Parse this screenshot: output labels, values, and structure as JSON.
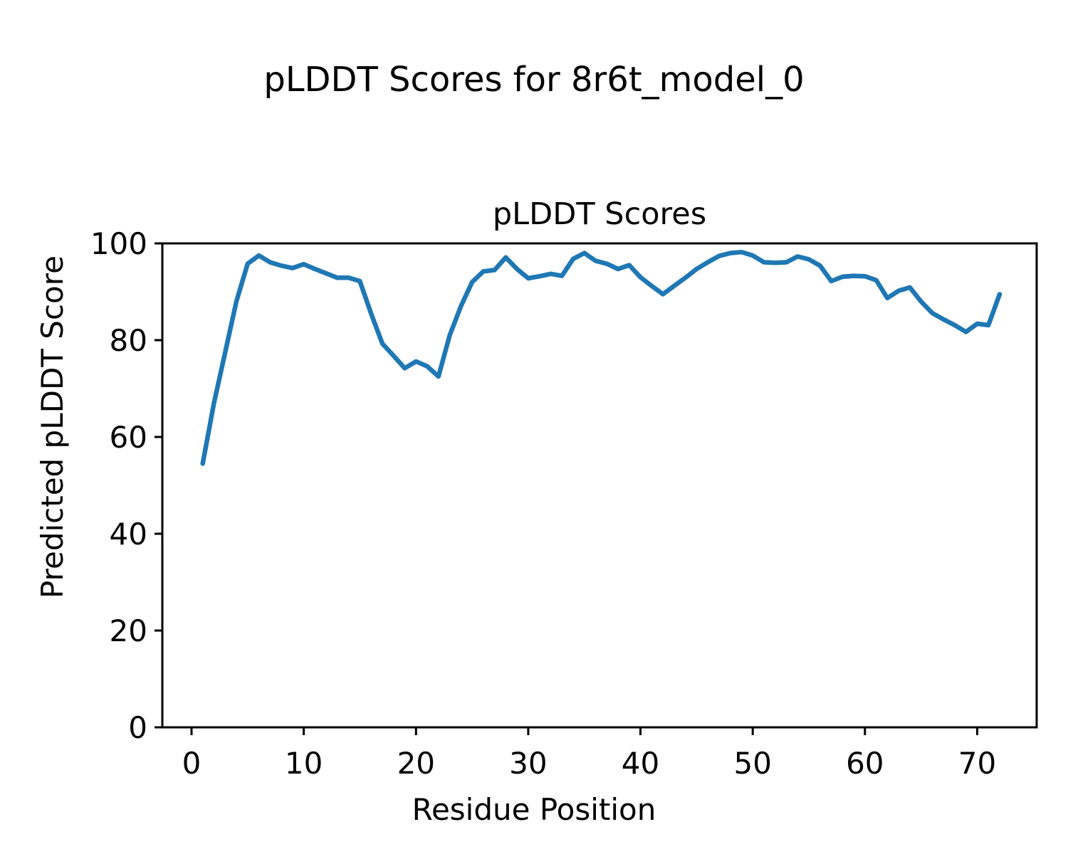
{
  "chart_data": {
    "type": "line",
    "suptitle": "pLDDT Scores for 8r6t_model_0",
    "title": "pLDDT Scores",
    "xlabel": "Residue Position",
    "ylabel": "Predicted pLDDT Score",
    "xlim": [
      -2.6,
      75.3
    ],
    "ylim": [
      0,
      100
    ],
    "x_ticks": [
      0,
      10,
      20,
      30,
      40,
      50,
      60,
      70
    ],
    "y_ticks": [
      0,
      20,
      40,
      60,
      80,
      100
    ],
    "grid": false,
    "legend": "none",
    "line_color": "#1f77b4",
    "background_color": "#ffffff",
    "text_color": "#000000",
    "series": [
      {
        "name": "pLDDT",
        "x": [
          1,
          2,
          3,
          4,
          5,
          6,
          7,
          8,
          9,
          10,
          11,
          12,
          13,
          14,
          15,
          16,
          17,
          18,
          19,
          20,
          21,
          22,
          23,
          24,
          25,
          26,
          27,
          28,
          29,
          30,
          31,
          32,
          33,
          34,
          35,
          36,
          37,
          38,
          39,
          40,
          41,
          42,
          43,
          44,
          45,
          46,
          47,
          48,
          49,
          50,
          51,
          52,
          53,
          54,
          55,
          56,
          57,
          58,
          59,
          60,
          61,
          62,
          63,
          64,
          65,
          66,
          67,
          68,
          69,
          70,
          71,
          72
        ],
        "values": [
          54.5,
          67.0,
          77.5,
          88.0,
          95.8,
          97.5,
          96.1,
          95.4,
          94.9,
          95.7,
          94.7,
          93.8,
          92.9,
          92.9,
          92.2,
          85.5,
          79.3,
          76.8,
          74.2,
          75.6,
          74.6,
          72.5,
          81.0,
          87.0,
          92.0,
          94.2,
          94.5,
          97.1,
          94.7,
          92.8,
          93.2,
          93.7,
          93.3,
          96.8,
          98.0,
          96.4,
          95.8,
          94.7,
          95.5,
          93.0,
          91.2,
          89.5,
          91.2,
          92.9,
          94.7,
          96.1,
          97.4,
          98.0,
          98.2,
          97.5,
          96.1,
          96.0,
          96.1,
          97.3,
          96.7,
          95.4,
          92.2,
          93.1,
          93.3,
          93.2,
          92.4,
          88.7,
          90.2,
          90.9,
          88.0,
          85.6,
          84.3,
          83.1,
          81.7,
          83.4,
          83.1,
          89.5
        ]
      }
    ]
  }
}
